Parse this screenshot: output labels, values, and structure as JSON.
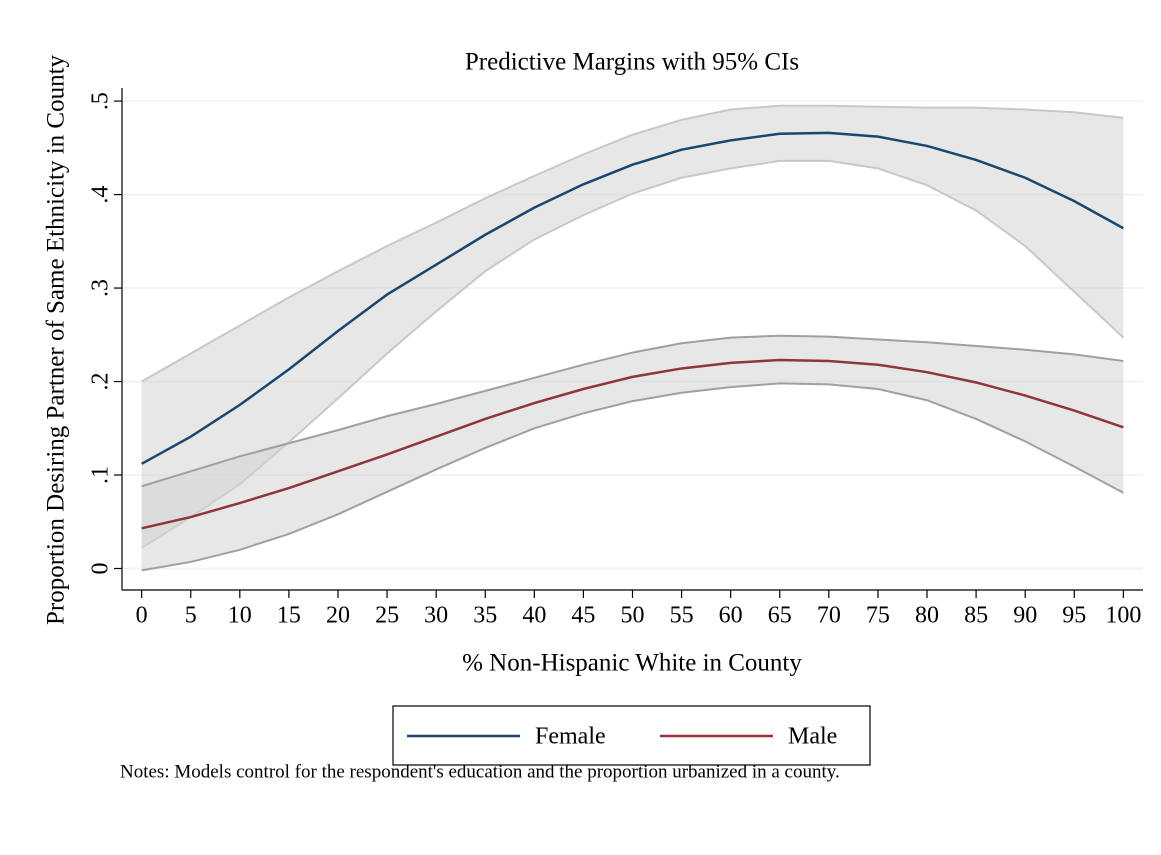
{
  "chart_data": {
    "type": "line",
    "title": "Predictive Margins with 95% CIs",
    "xlabel": "% Non-Hispanic White in County",
    "ylabel": "Proportion Desiring Partner of Same Ethnicity in County",
    "note": "Notes: Models control for the respondent's education and the proportion urbanized in a county.",
    "x": [
      0,
      5,
      10,
      15,
      20,
      25,
      30,
      35,
      40,
      45,
      50,
      55,
      60,
      65,
      70,
      75,
      80,
      85,
      90,
      95,
      100
    ],
    "series": [
      {
        "name": "Female",
        "color": "#1a476f",
        "band_color": "#c8c8c8",
        "values": [
          0.112,
          0.141,
          0.175,
          0.213,
          0.254,
          0.293,
          0.325,
          0.357,
          0.386,
          0.411,
          0.432,
          0.448,
          0.458,
          0.465,
          0.466,
          0.462,
          0.452,
          0.437,
          0.418,
          0.393,
          0.364
        ],
        "lower": [
          0.022,
          0.055,
          0.09,
          0.135,
          0.182,
          0.23,
          0.275,
          0.318,
          0.352,
          0.378,
          0.401,
          0.418,
          0.428,
          0.436,
          0.436,
          0.428,
          0.41,
          0.383,
          0.345,
          0.296,
          0.247
        ],
        "upper": [
          0.2,
          0.23,
          0.26,
          0.29,
          0.318,
          0.345,
          0.37,
          0.396,
          0.42,
          0.443,
          0.464,
          0.48,
          0.491,
          0.495,
          0.495,
          0.494,
          0.493,
          0.493,
          0.491,
          0.488,
          0.482
        ]
      },
      {
        "name": "Male",
        "color": "#90353b",
        "band_color": "#a0a0a0",
        "values": [
          0.043,
          0.055,
          0.07,
          0.086,
          0.104,
          0.122,
          0.141,
          0.16,
          0.177,
          0.192,
          0.205,
          0.214,
          0.22,
          0.223,
          0.222,
          0.218,
          0.21,
          0.199,
          0.185,
          0.169,
          0.151
        ],
        "lower": [
          -0.002,
          0.007,
          0.02,
          0.037,
          0.058,
          0.082,
          0.106,
          0.129,
          0.15,
          0.166,
          0.179,
          0.188,
          0.194,
          0.198,
          0.197,
          0.192,
          0.18,
          0.16,
          0.136,
          0.109,
          0.081
        ],
        "upper": [
          0.088,
          0.104,
          0.12,
          0.134,
          0.148,
          0.163,
          0.176,
          0.19,
          0.204,
          0.218,
          0.231,
          0.241,
          0.247,
          0.249,
          0.248,
          0.245,
          0.242,
          0.238,
          0.234,
          0.229,
          0.222
        ]
      }
    ],
    "xlim": [
      -2,
      102
    ],
    "ylim": [
      -0.023,
      0.514
    ],
    "xticks": [
      0,
      5,
      10,
      15,
      20,
      25,
      30,
      35,
      40,
      45,
      50,
      55,
      60,
      65,
      70,
      75,
      80,
      85,
      90,
      95,
      100
    ],
    "yticks": [
      0,
      {
        "value": 0.1,
        "label": ".1"
      },
      {
        "value": 0.2,
        "label": ".2"
      },
      {
        "value": 0.3,
        "label": ".3"
      },
      {
        "value": 0.4,
        "label": ".4"
      },
      {
        "value": 0.5,
        "label": ".5"
      }
    ],
    "grid": true,
    "legend": "bottom"
  }
}
